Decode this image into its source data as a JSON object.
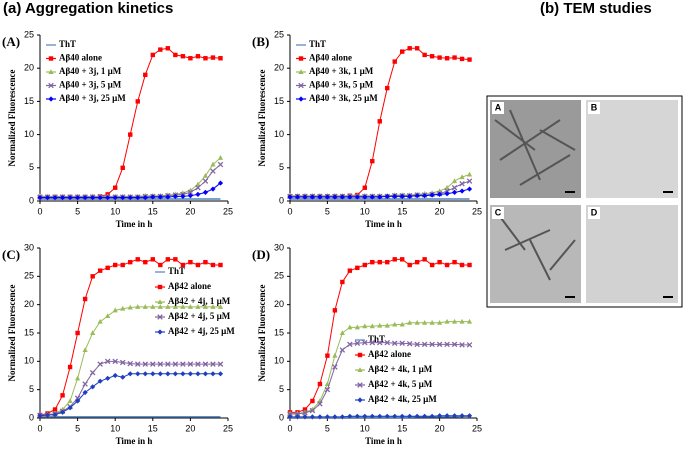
{
  "headings": {
    "left": "(a) Aggregation kinetics",
    "right": "(b) TEM studies"
  },
  "tem": {
    "panels": [
      "A",
      "B",
      "C",
      "D"
    ]
  },
  "chart_data": [
    {
      "type": "line",
      "panel_label": "(A)",
      "xlabel": "Time in h",
      "ylabel": "Normalized Fluorescence",
      "legend": "upper left",
      "xlim": [
        0,
        25
      ],
      "ylim": [
        0,
        25
      ],
      "xticks": [
        0,
        5,
        10,
        15,
        20,
        25
      ],
      "yticks": [
        0,
        5,
        10,
        15,
        20,
        25
      ],
      "x": [
        0,
        1,
        2,
        3,
        4,
        5,
        6,
        7,
        8,
        9,
        10,
        11,
        12,
        13,
        14,
        15,
        16,
        17,
        18,
        19,
        20,
        21,
        22,
        23,
        24
      ],
      "series": [
        {
          "name": "ThT",
          "color": "#4f81bd",
          "values": [
            0.3,
            0.3,
            0.3,
            0.3,
            0.3,
            0.3,
            0.3,
            0.3,
            0.3,
            0.3,
            0.3,
            0.3,
            0.3,
            0.3,
            0.3,
            0.3,
            0.3,
            0.3,
            0.3,
            0.3,
            0.3,
            0.3,
            0.3,
            0.3,
            0.3
          ]
        },
        {
          "name": "Aβ40 alone",
          "color": "#ff0000",
          "values": [
            0.6,
            0.6,
            0.6,
            0.6,
            0.6,
            0.6,
            0.6,
            0.6,
            0.7,
            1,
            2,
            5,
            10,
            15,
            19,
            22,
            22.8,
            23,
            22,
            21.8,
            21.5,
            21.8,
            21.5,
            21.6,
            21.5
          ]
        },
        {
          "name": "Aβ40 + 3j, 1 µM",
          "color": "#9bbb59",
          "values": [
            0.7,
            0.7,
            0.7,
            0.7,
            0.7,
            0.7,
            0.7,
            0.7,
            0.7,
            0.7,
            0.7,
            0.7,
            0.7,
            0.7,
            0.8,
            0.8,
            0.8,
            0.9,
            1,
            1.2,
            1.6,
            2.5,
            3.8,
            5.5,
            6.5
          ]
        },
        {
          "name": "Aβ40 + 3j, 5 µM",
          "color": "#8064a2",
          "values": [
            0.6,
            0.6,
            0.6,
            0.6,
            0.6,
            0.6,
            0.6,
            0.6,
            0.6,
            0.6,
            0.6,
            0.6,
            0.6,
            0.6,
            0.7,
            0.7,
            0.7,
            0.8,
            0.9,
            1,
            1.3,
            2,
            3,
            4.5,
            5.5
          ]
        },
        {
          "name": "Aβ40 + 3j, 25 µM",
          "color": "#0000ff",
          "values": [
            0.5,
            0.5,
            0.5,
            0.5,
            0.5,
            0.5,
            0.5,
            0.5,
            0.5,
            0.5,
            0.5,
            0.5,
            0.5,
            0.5,
            0.5,
            0.6,
            0.6,
            0.6,
            0.7,
            0.7,
            0.8,
            1,
            1.3,
            1.8,
            2.7
          ]
        }
      ]
    },
    {
      "type": "line",
      "panel_label": "(B)",
      "xlabel": "Time in h",
      "ylabel": "Normalized Fluorescence",
      "legend": "upper left",
      "xlim": [
        0,
        25
      ],
      "ylim": [
        0,
        25
      ],
      "xticks": [
        0,
        5,
        10,
        15,
        20,
        25
      ],
      "yticks": [
        0,
        5,
        10,
        15,
        20,
        25
      ],
      "x": [
        0,
        1,
        2,
        3,
        4,
        5,
        6,
        7,
        8,
        9,
        10,
        11,
        12,
        13,
        14,
        15,
        16,
        17,
        18,
        19,
        20,
        21,
        22,
        23,
        24
      ],
      "series": [
        {
          "name": "ThT",
          "color": "#4f81bd",
          "values": [
            0.3,
            0.3,
            0.3,
            0.3,
            0.3,
            0.3,
            0.3,
            0.3,
            0.3,
            0.3,
            0.3,
            0.3,
            0.3,
            0.3,
            0.3,
            0.3,
            0.3,
            0.3,
            0.3,
            0.3,
            0.3,
            0.3,
            0.3,
            0.3,
            0.3
          ]
        },
        {
          "name": "Aβ40 alone",
          "color": "#ff0000",
          "values": [
            0.7,
            0.7,
            0.7,
            0.7,
            0.7,
            0.7,
            0.7,
            0.7,
            0.8,
            0.9,
            2,
            6,
            12,
            17,
            21,
            22.5,
            23,
            23,
            22,
            21.8,
            21.6,
            21.5,
            21.6,
            21.4,
            21.3
          ]
        },
        {
          "name": "Aβ40 + 3k, 1 µM",
          "color": "#9bbb59",
          "values": [
            0.8,
            0.8,
            0.8,
            0.8,
            0.8,
            0.8,
            0.8,
            0.8,
            0.8,
            0.8,
            0.8,
            0.8,
            0.8,
            0.8,
            0.9,
            0.9,
            0.9,
            1,
            1.1,
            1.2,
            1.5,
            2,
            3,
            3.6,
            4
          ]
        },
        {
          "name": "Aβ40 + 3k, 5 µM",
          "color": "#8064a2",
          "values": [
            0.7,
            0.7,
            0.7,
            0.7,
            0.7,
            0.7,
            0.7,
            0.7,
            0.7,
            0.7,
            0.7,
            0.7,
            0.7,
            0.7,
            0.8,
            0.8,
            0.8,
            0.9,
            0.9,
            1,
            1.1,
            1.5,
            2,
            2.6,
            3
          ]
        },
        {
          "name": "Aβ40 + 3k, 25 µM",
          "color": "#0000ff",
          "values": [
            0.6,
            0.6,
            0.6,
            0.6,
            0.6,
            0.6,
            0.6,
            0.6,
            0.6,
            0.6,
            0.6,
            0.6,
            0.6,
            0.7,
            0.7,
            0.7,
            0.7,
            0.8,
            0.8,
            0.9,
            1,
            1.1,
            1.3,
            1.5,
            1.8
          ]
        }
      ]
    },
    {
      "type": "line",
      "panel_label": "(C)",
      "xlabel": "Time in h",
      "ylabel": "Normalized Fluorescence",
      "legend": "center right",
      "xlim": [
        0,
        25
      ],
      "ylim": [
        0,
        30
      ],
      "xticks": [
        0,
        5,
        10,
        15,
        20,
        25
      ],
      "yticks": [
        0,
        5,
        10,
        15,
        20,
        25,
        30
      ],
      "x": [
        0,
        1,
        2,
        3,
        4,
        5,
        6,
        7,
        8,
        9,
        10,
        11,
        12,
        13,
        14,
        15,
        16,
        17,
        18,
        19,
        20,
        21,
        22,
        23,
        24
      ],
      "series": [
        {
          "name": "ThT",
          "color": "#4f81bd",
          "values": [
            0.2,
            0.2,
            0.2,
            0.2,
            0.2,
            0.2,
            0.2,
            0.2,
            0.2,
            0.2,
            0.2,
            0.2,
            0.2,
            0.2,
            0.2,
            0.2,
            0.2,
            0.2,
            0.2,
            0.2,
            0.2,
            0.2,
            0.2,
            0.2,
            0.2
          ]
        },
        {
          "name": "Aβ42 alone",
          "color": "#ff0000",
          "values": [
            0.5,
            0.8,
            1.5,
            4,
            9,
            15,
            21,
            25,
            26,
            26.5,
            27,
            27,
            27.5,
            28,
            27.5,
            28,
            27,
            28,
            28,
            27,
            27.5,
            27,
            27.5,
            27,
            27
          ]
        },
        {
          "name": "Aβ42 + 4j, 1 µM",
          "color": "#9bbb59",
          "values": [
            0.5,
            0.6,
            0.8,
            1.5,
            3,
            7,
            12,
            15,
            17,
            18,
            19,
            19.3,
            19.5,
            19.6,
            19.6,
            19.6,
            19.6,
            19.6,
            19.6,
            19.6,
            19.6,
            19.6,
            19.6,
            19.6,
            19.6
          ]
        },
        {
          "name": "Aβ42 + 4j, 5 µM",
          "color": "#8064a2",
          "values": [
            0.5,
            0.5,
            0.7,
            1.2,
            2,
            3.5,
            6,
            8,
            9.5,
            10,
            10,
            9.8,
            9.6,
            9.5,
            9.5,
            9.5,
            9.5,
            9.5,
            9.5,
            9.5,
            9.5,
            9.5,
            9.5,
            9.5,
            9.5
          ]
        },
        {
          "name": "Aβ42 + 4j, 25 µM",
          "color": "#1f3fbf",
          "values": [
            0.4,
            0.5,
            0.6,
            1,
            1.8,
            3,
            4.5,
            5.5,
            6.5,
            7,
            7.5,
            7.2,
            7.8,
            7.8,
            7.8,
            7.8,
            7.8,
            7.8,
            7.8,
            7.8,
            7.8,
            7.8,
            7.8,
            7.8,
            7.8
          ]
        }
      ]
    },
    {
      "type": "line",
      "panel_label": "(D)",
      "xlabel": "Time in h",
      "ylabel": "Normalized Fluorescence",
      "legend": "lower center",
      "xlim": [
        0,
        25
      ],
      "ylim": [
        0,
        30
      ],
      "xticks": [
        0,
        5,
        10,
        15,
        20,
        25
      ],
      "yticks": [
        0,
        5,
        10,
        15,
        20,
        25,
        30
      ],
      "x": [
        0,
        1,
        2,
        3,
        4,
        5,
        6,
        7,
        8,
        9,
        10,
        11,
        12,
        13,
        14,
        15,
        16,
        17,
        18,
        19,
        20,
        21,
        22,
        23,
        24
      ],
      "series": [
        {
          "name": "ThT",
          "color": "#4f81bd",
          "values": [
            0.1,
            0.1,
            0.1,
            0.1,
            0.1,
            0.1,
            0.1,
            0.1,
            0.1,
            0.1,
            0.1,
            0.1,
            0.1,
            0.1,
            0.1,
            0.1,
            0.1,
            0.2,
            0.2,
            0.2,
            0.2,
            0.2,
            0.2,
            0.3,
            0.3
          ]
        },
        {
          "name": "Aβ42 alone",
          "color": "#ff0000",
          "values": [
            1,
            1,
            1.5,
            3,
            6,
            11,
            19,
            24,
            26,
            26.5,
            27,
            27.5,
            27.5,
            27.5,
            28,
            28,
            27,
            27.5,
            28,
            27,
            27.5,
            27,
            27.5,
            27,
            27
          ]
        },
        {
          "name": "Aβ42 + 4k, 1 µM",
          "color": "#9bbb59",
          "values": [
            0.8,
            0.8,
            1,
            1.5,
            3,
            6,
            11,
            15,
            16,
            16,
            16.2,
            16.2,
            16.3,
            16.3,
            16.5,
            16.5,
            16.8,
            16.8,
            16.8,
            16.8,
            16.8,
            17,
            17,
            17,
            17
          ]
        },
        {
          "name": "Aβ42 + 4k, 5 µM",
          "color": "#8064a2",
          "values": [
            0.7,
            0.7,
            0.9,
            1.3,
            2.5,
            5,
            9,
            12,
            13,
            13.2,
            13.3,
            13.3,
            13.3,
            13.3,
            13.2,
            13.2,
            13.1,
            13,
            13,
            13,
            13,
            13,
            13,
            12.9,
            12.9
          ]
        },
        {
          "name": "Aβ42 + 4k, 25 µM",
          "color": "#1f3fbf",
          "values": [
            0.2,
            0.2,
            0.2,
            0.2,
            0.2,
            0.2,
            0.2,
            0.2,
            0.3,
            0.3,
            0.3,
            0.3,
            0.3,
            0.3,
            0.3,
            0.3,
            0.3,
            0.3,
            0.3,
            0.3,
            0.4,
            0.4,
            0.4,
            0.4,
            0.4
          ]
        }
      ]
    }
  ]
}
